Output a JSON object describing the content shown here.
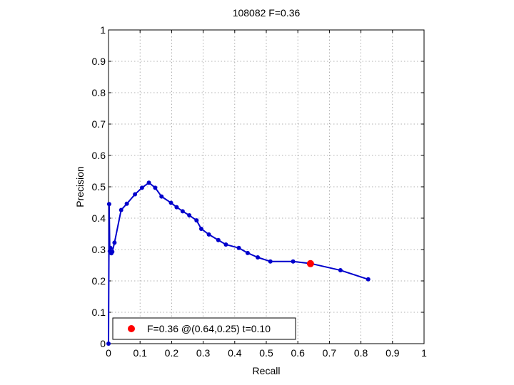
{
  "chart_data": {
    "type": "line",
    "title": "108082 F=0.36",
    "xlabel": "Recall",
    "ylabel": "Precision",
    "xlim": [
      0,
      1
    ],
    "ylim": [
      0,
      1
    ],
    "xticks": [
      "0",
      "0.1",
      "0.2",
      "0.3",
      "0.4",
      "0.5",
      "0.6",
      "0.7",
      "0.8",
      "0.9",
      "1"
    ],
    "yticks": [
      "0",
      "0.1",
      "0.2",
      "0.3",
      "0.4",
      "0.5",
      "0.6",
      "0.7",
      "0.8",
      "0.9",
      "1"
    ],
    "grid": true,
    "legend_position": "bottom-left",
    "series": [
      {
        "color": "#0000cc",
        "x": [
          0.823,
          0.735,
          0.643,
          0.585,
          0.513,
          0.473,
          0.441,
          0.413,
          0.372,
          0.348,
          0.318,
          0.294,
          0.279,
          0.256,
          0.235,
          0.216,
          0.198,
          0.168,
          0.148,
          0.128,
          0.106,
          0.084,
          0.058,
          0.04,
          0.019,
          0.012,
          0.009,
          0.006,
          0.004,
          0.002,
          0.0
        ],
        "y": [
          0.205,
          0.234,
          0.255,
          0.262,
          0.262,
          0.275,
          0.289,
          0.305,
          0.316,
          0.33,
          0.348,
          0.366,
          0.393,
          0.409,
          0.422,
          0.435,
          0.449,
          0.469,
          0.497,
          0.513,
          0.497,
          0.476,
          0.446,
          0.426,
          0.322,
          0.293,
          0.288,
          0.305,
          0.295,
          0.445,
          0.0
        ]
      }
    ],
    "highlight": {
      "x": 0.64,
      "y": 0.255,
      "color": "#ff0000",
      "label": "F=0.36 @(0.64,0.25) t=0.10"
    }
  }
}
